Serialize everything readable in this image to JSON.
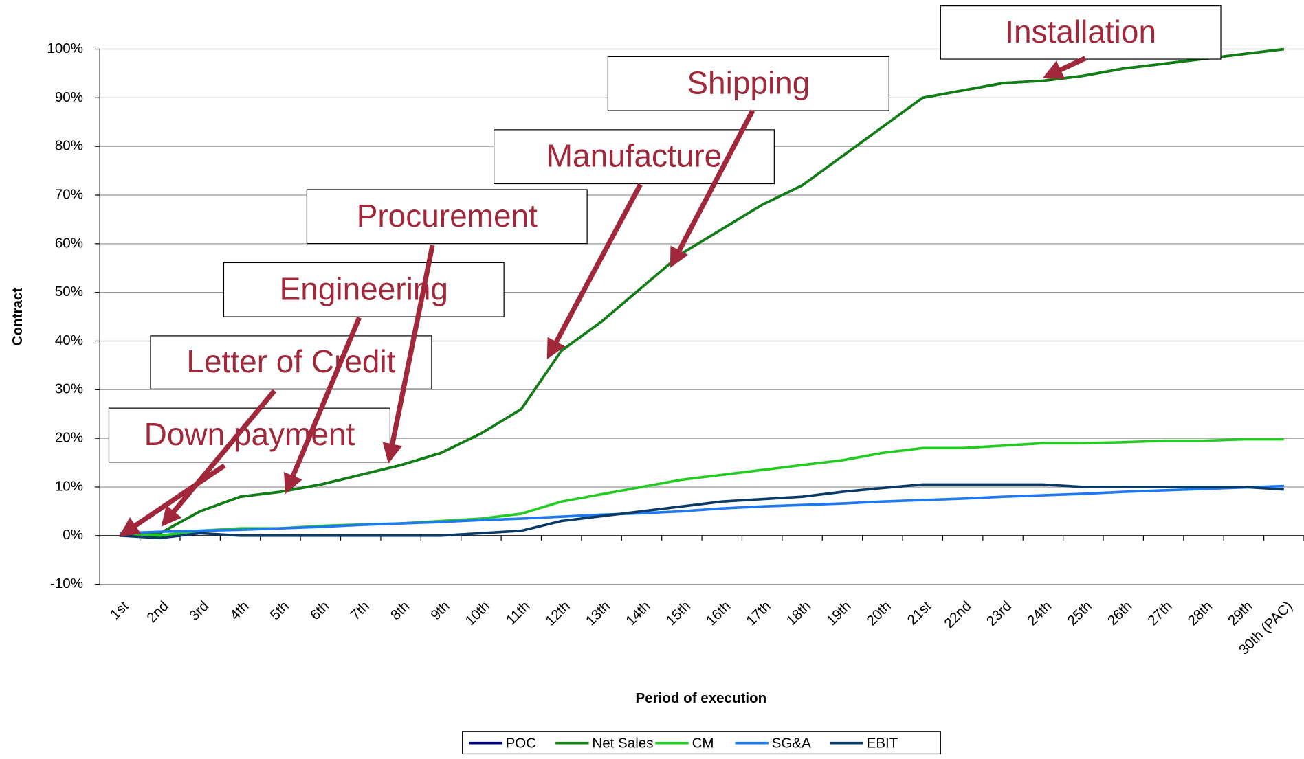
{
  "chart_data": {
    "type": "line",
    "y_label": "Contract",
    "x_label": "Period of execution",
    "categories": [
      "1st",
      "2nd",
      "3rd",
      "4th",
      "5th",
      "6th",
      "7th",
      "8th",
      "9th",
      "10th",
      "11th",
      "12th",
      "13th",
      "14th",
      "15th",
      "16th",
      "17th",
      "18th",
      "19th",
      "20th",
      "21st",
      "22nd",
      "23rd",
      "24th",
      "25th",
      "26th",
      "27th",
      "28th",
      "29th",
      "30th (PAC)"
    ],
    "series": [
      {
        "name": "POC",
        "color": "#000080",
        "values": [
          0,
          0.5,
          5,
          8,
          9,
          10.5,
          12.5,
          14.5,
          17,
          21,
          26,
          38,
          44,
          51,
          58,
          63,
          68,
          72,
          78,
          84,
          90,
          91.5,
          93,
          93.5,
          94.5,
          96,
          97,
          98,
          99,
          100
        ]
      },
      {
        "name": "Net Sales",
        "color": "#108010",
        "values": [
          0,
          0.5,
          5,
          8,
          9,
          10.5,
          12.5,
          14.5,
          17,
          21,
          26,
          38,
          44,
          51,
          58,
          63,
          68,
          72,
          78,
          84,
          90,
          91.5,
          93,
          93.5,
          94.5,
          96,
          97,
          98,
          99,
          100
        ]
      },
      {
        "name": "CM",
        "color": "#22cc22",
        "values": [
          0,
          0,
          1,
          1.5,
          1.5,
          2,
          2.3,
          2.5,
          3,
          3.5,
          4.5,
          7,
          8.5,
          10,
          11.5,
          12.5,
          13.5,
          14.5,
          15.5,
          17,
          18,
          18,
          18.5,
          19,
          19,
          19.2,
          19.5,
          19.5,
          19.8,
          19.8
        ]
      },
      {
        "name": "SG&A",
        "color": "#1e78f0",
        "values": [
          0.5,
          0.8,
          1,
          1.2,
          1.5,
          1.8,
          2.2,
          2.5,
          2.8,
          3.2,
          3.5,
          3.9,
          4.3,
          4.6,
          5,
          5.6,
          6,
          6.3,
          6.6,
          7,
          7.3,
          7.6,
          8,
          8.3,
          8.6,
          9,
          9.3,
          9.6,
          9.9,
          10.2
        ]
      },
      {
        "name": "EBIT",
        "color": "#0a3a66",
        "values": [
          0,
          -0.5,
          0.5,
          0,
          0,
          0,
          0,
          0,
          0,
          0.5,
          1,
          3,
          4,
          5,
          6,
          7,
          7.5,
          8,
          9,
          9.8,
          10.5,
          10.5,
          10.5,
          10.5,
          10,
          10,
          10,
          10,
          10,
          9.5
        ]
      }
    ],
    "ylim": [
      -10,
      100
    ],
    "yticks": [
      {
        "value": -10,
        "label": "-10%"
      },
      {
        "value": 0,
        "label": "0%"
      },
      {
        "value": 10,
        "label": "10%"
      },
      {
        "value": 20,
        "label": "20%"
      },
      {
        "value": 30,
        "label": "30%"
      },
      {
        "value": 40,
        "label": "40%"
      },
      {
        "value": 50,
        "label": "50%"
      },
      {
        "value": 60,
        "label": "60%"
      },
      {
        "value": 70,
        "label": "70%"
      },
      {
        "value": 80,
        "label": "80%"
      },
      {
        "value": 90,
        "label": "90%"
      },
      {
        "value": 100,
        "label": "100%"
      }
    ],
    "grid": true,
    "legend": "bottom",
    "annotations": [
      "Down payment",
      "Letter of Credit",
      "Engineering",
      "Procurement",
      "Manufacture",
      "Shipping",
      "Installation"
    ]
  }
}
